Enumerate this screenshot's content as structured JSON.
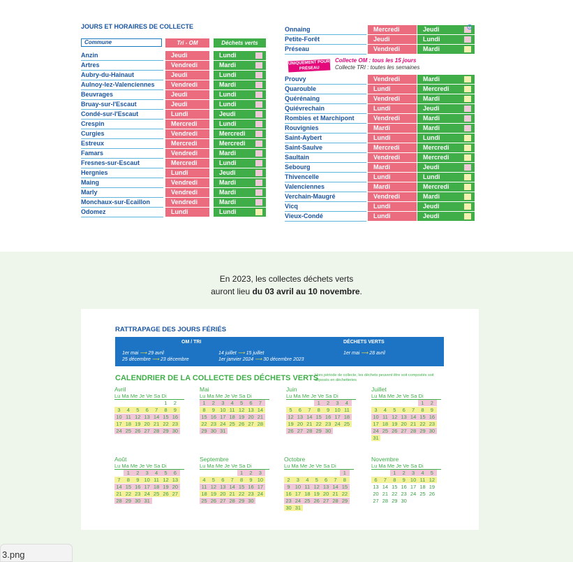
{
  "schedule": {
    "title": "JOURS ET HORAIRES DE COLLECTE",
    "headers": {
      "commune": "Commune",
      "om": "Tri - OM",
      "dv": "Déchets verts"
    },
    "left": [
      {
        "name": "Anzin",
        "om": "Jeudi",
        "dv": "Lundi",
        "c": "p"
      },
      {
        "name": "Artres",
        "om": "Vendredi",
        "dv": "Mardi",
        "c": "p"
      },
      {
        "name": "Aubry-du-Hainaut",
        "om": "Jeudi",
        "dv": "Lundi",
        "c": "p"
      },
      {
        "name": "Aulnoy-lez-Valenciennes",
        "om": "Vendredi",
        "dv": "Mardi",
        "c": "p"
      },
      {
        "name": "Beuvrages",
        "om": "Jeudi",
        "dv": "Lundi",
        "c": "p"
      },
      {
        "name": "Bruay-sur-l'Escaut",
        "om": "Jeudi",
        "dv": "Lundi",
        "c": "p"
      },
      {
        "name": "Condé-sur-l'Escaut",
        "om": "Lundi",
        "dv": "Jeudi",
        "c": "p"
      },
      {
        "name": "Crespin",
        "om": "Mercredi",
        "dv": "Lundi",
        "c": "p"
      },
      {
        "name": "Curgies",
        "om": "Vendredi",
        "dv": "Mercredi",
        "c": "p"
      },
      {
        "name": "Estreux",
        "om": "Mercredi",
        "dv": "Mercredi",
        "c": "p"
      },
      {
        "name": "Famars",
        "om": "Vendredi",
        "dv": "Mardi",
        "c": "p"
      },
      {
        "name": "Fresnes-sur-Escaut",
        "om": "Mercredi",
        "dv": "Lundi",
        "c": "p"
      },
      {
        "name": "Hergnies",
        "om": "Lundi",
        "dv": "Jeudi",
        "c": "p"
      },
      {
        "name": "Maing",
        "om": "Vendredi",
        "dv": "Mardi",
        "c": "p"
      },
      {
        "name": "Marly",
        "om": "Vendredi",
        "dv": "Mardi",
        "c": "p"
      },
      {
        "name": "Monchaux-sur-Ecaillon",
        "om": "Vendredi",
        "dv": "Mardi",
        "c": "p"
      },
      {
        "name": "Odomez",
        "om": "Lundi",
        "dv": "Lundi",
        "c": "y"
      }
    ],
    "right_top": [
      {
        "name": "Onnaing",
        "om": "Mercredi",
        "dv": "Jeudi",
        "c": "p"
      },
      {
        "name": "Petite-Forêt",
        "om": "Jeudi",
        "dv": "Lundi",
        "c": "p"
      },
      {
        "name": "Préseau",
        "om": "Vendredi",
        "dv": "Mardi",
        "c": "y"
      }
    ],
    "badge": "UNIQUEMENT POUR PRÉSEAU",
    "note_om": "Collecte OM : tous les 15 jours",
    "note_tri": "Collecte TRI : toutes les semaines",
    "right": [
      {
        "name": "Prouvy",
        "om": "Vendredi",
        "dv": "Mardi",
        "c": "y"
      },
      {
        "name": "Quarouble",
        "om": "Lundi",
        "dv": "Mercredi",
        "c": "y"
      },
      {
        "name": "Quérénaing",
        "om": "Vendredi",
        "dv": "Mardi",
        "c": "y"
      },
      {
        "name": "Quiévrechain",
        "om": "Lundi",
        "dv": "Jeudi",
        "c": "p"
      },
      {
        "name": "Rombies et Marchipont",
        "om": "Vendredi",
        "dv": "Mardi",
        "c": "p"
      },
      {
        "name": "Rouvignies",
        "om": "Mardi",
        "dv": "Mardi",
        "c": "p"
      },
      {
        "name": "Saint-Aybert",
        "om": "Lundi",
        "dv": "Lundi",
        "c": "y"
      },
      {
        "name": "Saint-Saulve",
        "om": "Mercredi",
        "dv": "Mercredi",
        "c": "y"
      },
      {
        "name": "Saultain",
        "om": "Vendredi",
        "dv": "Mercredi",
        "c": "y"
      },
      {
        "name": "Sebourg",
        "om": "Mardi",
        "dv": "Jeudi",
        "c": "p"
      },
      {
        "name": "Thivencelle",
        "om": "Lundi",
        "dv": "Lundi",
        "c": "y"
      },
      {
        "name": "Valenciennes",
        "om": "Mardi",
        "dv": "Mercredi",
        "c": "y"
      },
      {
        "name": "Verchain-Maugré",
        "om": "Vendredi",
        "dv": "Mardi",
        "c": "y"
      },
      {
        "name": "Vicq",
        "om": "Lundi",
        "dv": "Jeudi",
        "c": "y"
      },
      {
        "name": "Vieux-Condé",
        "om": "Lundi",
        "dv": "Jeudi",
        "c": "y"
      }
    ]
  },
  "intro": {
    "line1": "En 2023, les collectes déchets verts",
    "line2a": "auront lieu ",
    "line2b": "du 03 avril au 10 novembre",
    "line2c": "."
  },
  "rattrapage": {
    "title": "RATTRAPAGE DES JOURS FÉRIÉS",
    "om_head": "OM / TRI",
    "dv_head": "DÉCHETS VERTS",
    "om_a1": "1er mai",
    "om_b1": "29 avril",
    "om_a2": "25 décembre",
    "om_b2": "23 décembre",
    "om_c1": "14 juillet",
    "om_d1": "15 juillet",
    "om_c2": "1er janvier 2024",
    "om_d2": "30 décembre 2023",
    "dv_a": "1er mai",
    "dv_b": "28 avril"
  },
  "calendar": {
    "title": "CALENDRIER DE LA COLLECTE DES DÉCHETS VERTS",
    "subtitle": "Hors période de collecte, les déchets peuvent être soit compostés soit déposés en déchetteries",
    "weekdays": "Lu Ma Me Je Ve Sa Di",
    "months": [
      {
        "name": "Avril",
        "start": 5,
        "days": 30
      },
      {
        "name": "Mai",
        "start": 0,
        "days": 31
      },
      {
        "name": "Juin",
        "start": 3,
        "days": 30
      },
      {
        "name": "Juillet",
        "start": 5,
        "days": 31
      },
      {
        "name": "Août",
        "start": 1,
        "days": 31
      },
      {
        "name": "Septembre",
        "start": 4,
        "days": 30
      },
      {
        "name": "Octobre",
        "start": 6,
        "days": 31
      },
      {
        "name": "Novembre",
        "start": 2,
        "days": 30
      }
    ]
  },
  "file_tab": "3.png"
}
